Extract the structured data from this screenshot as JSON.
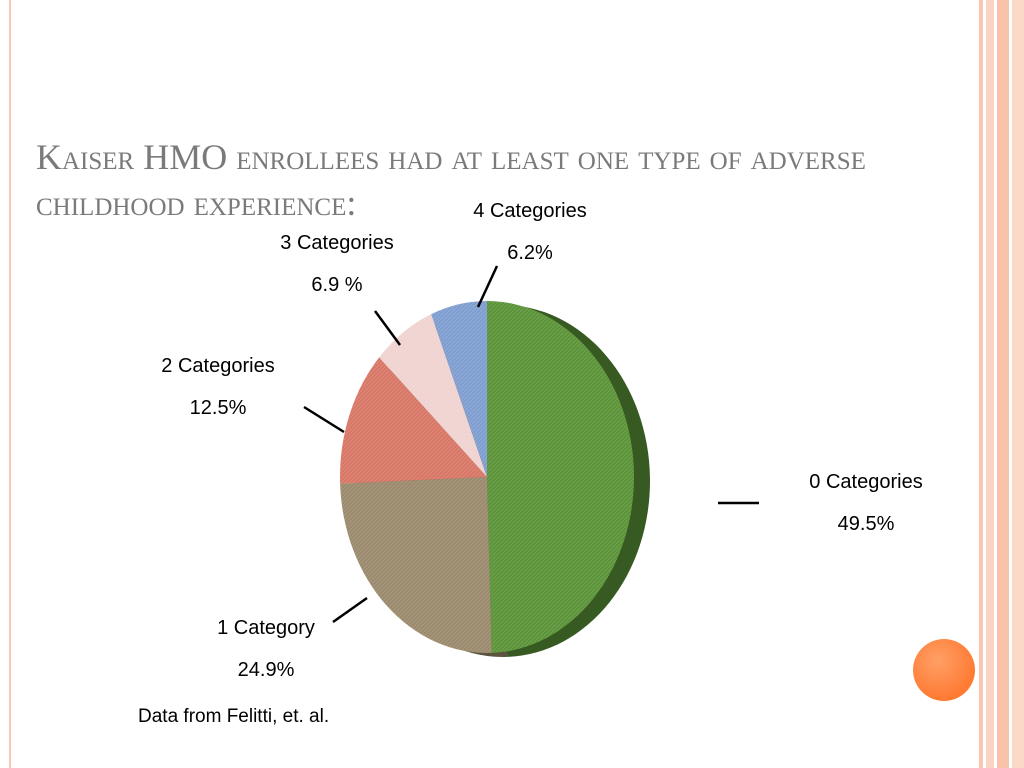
{
  "slide": {
    "title": "Kaiser HMO enrollees had at least one type of adverse childhood experience:",
    "source": "Data from Felitti, et. al."
  },
  "chart_data": {
    "type": "pie",
    "title": "",
    "slices": [
      {
        "label": "0 Categories",
        "value": 49.5,
        "value_label": "49.5%",
        "color": "#5c9439"
      },
      {
        "label": "1 Category",
        "value": 24.9,
        "value_label": "24.9%",
        "color": "#9b8a6d"
      },
      {
        "label": "2 Categories",
        "value": 12.5,
        "value_label": "12.5%",
        "color": "#d87767"
      },
      {
        "label": "3 Categories",
        "value": 6.9,
        "value_label": "6.9 %",
        "color": "#efd3d0"
      },
      {
        "label": "4 Categories",
        "value": 6.2,
        "value_label": "6.2%",
        "color": "#7f9ed0"
      }
    ]
  }
}
